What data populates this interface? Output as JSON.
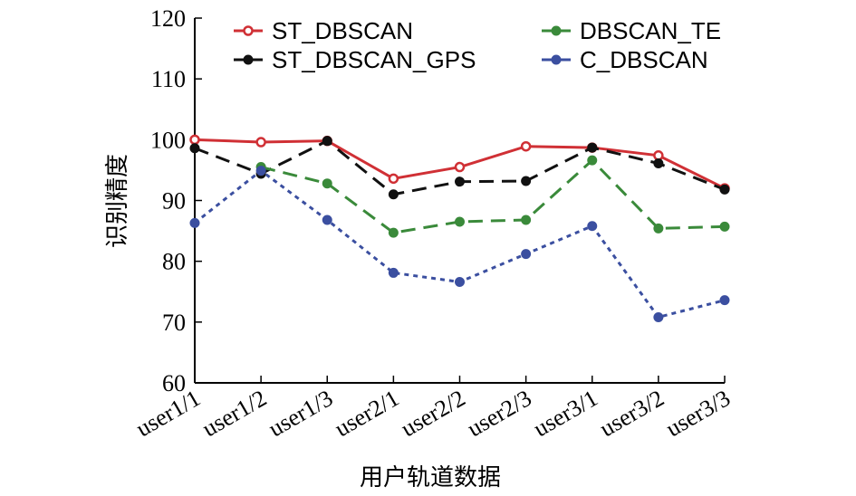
{
  "chart_data": {
    "type": "line",
    "title": "",
    "xlabel": "用户轨道数据",
    "ylabel": "识别精度",
    "categories": [
      "user1/1",
      "user1/2",
      "user1/3",
      "user2/1",
      "user2/2",
      "user2/3",
      "user3/1",
      "user3/2",
      "user3/3"
    ],
    "ylim": [
      60,
      120
    ],
    "yticks": [
      "60",
      "70",
      "80",
      "90",
      "100",
      "110",
      "120"
    ],
    "grid": false,
    "legend_position": "top",
    "series": [
      {
        "name": "ST_DBSCAN",
        "values": [
          100.0,
          99.6,
          99.8,
          93.6,
          95.5,
          98.9,
          98.7,
          97.4,
          92.0
        ],
        "color": "#d03035",
        "marker": "hollow-circle",
        "dash": "solid"
      },
      {
        "name": "ST_DBSCAN_GPS",
        "values": [
          98.6,
          94.4,
          99.8,
          91.0,
          93.1,
          93.2,
          98.7,
          96.1,
          91.8
        ],
        "color": "#111111",
        "marker": "filled-circle",
        "dash": "long-dash"
      },
      {
        "name": "DBSCAN_TE",
        "values": [
          null,
          95.5,
          92.8,
          84.7,
          86.5,
          86.8,
          96.6,
          85.4,
          85.7
        ],
        "color": "#3a8a3a",
        "marker": "filled-circle",
        "dash": "long-dash"
      },
      {
        "name": "C_DBSCAN",
        "values": [
          86.3,
          94.9,
          86.8,
          78.1,
          76.6,
          81.2,
          85.8,
          70.8,
          73.6
        ],
        "color": "#3b4fa0",
        "marker": "filled-circle",
        "dash": "dotted"
      }
    ]
  }
}
